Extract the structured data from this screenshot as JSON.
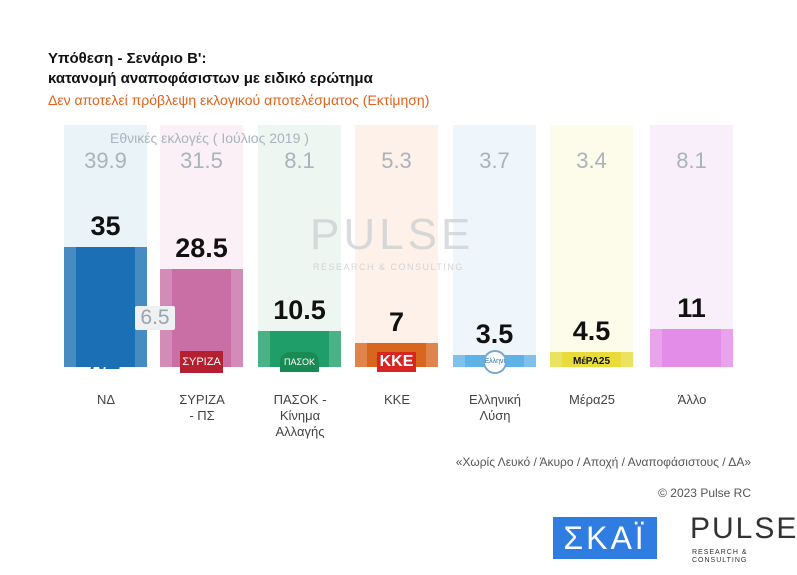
{
  "header": {
    "title_line1": "Υπόθεση - Σενάριο Β':",
    "title_line2": "κατανομή αναποφάσιστων με ειδικό ερώτημα",
    "subtitle": "Δεν αποτελεί πρόβλεψη εκλογικού αποτελέσματος   (Εκτίμηση)"
  },
  "chart_data": {
    "type": "bar",
    "categories": [
      "ΝΔ",
      "ΣΥΡΙΖΑ - ΠΣ",
      "ΠΑΣΟΚ - Κίνημα Αλλαγής",
      "ΚΚΕ",
      "Ελληνική Λύση",
      "Μέρα25",
      "Άλλο"
    ],
    "values": [
      35,
      28.5,
      10.5,
      7,
      3.5,
      4.5,
      11
    ],
    "value_labels": [
      "35",
      "28.5",
      "10.5",
      "7",
      "3.5",
      "4.5",
      "11"
    ],
    "previous_label": "Εθνικές εκλογές  ( Ιούλιος 2019 )",
    "previous_values": [
      "39.9",
      "31.5",
      "8.1",
      "5.3",
      "3.7",
      "3.4",
      "8.1"
    ],
    "gap_label": "6.5",
    "colors": [
      "#1a6fb5",
      "#c96fa6",
      "#1f9e6a",
      "#d9661e",
      "#5fb2e6",
      "#e8db3a",
      "#e48de8"
    ],
    "background_colors": [
      "#eaf3f8",
      "#fbf0f6",
      "#edf6f1",
      "#fdf1ea",
      "#eef6fb",
      "#fdfbea",
      "#f8effa"
    ],
    "logos": [
      "ΝΔ",
      "ΣΥΡΙΖΑ",
      "ΠΑΣΟΚ",
      "ΚΚΕ",
      "Ελληνική Λύση",
      "ΜέΡΑ25",
      ""
    ],
    "ylim": [
      0,
      70
    ],
    "grid": false
  },
  "footer": {
    "note": "«Χωρίς Λευκό / Άκυρο / Αποχή / Αναποφάσιστους / ΔΑ»",
    "copyright": "© 2023 Pulse RC",
    "skai_logo": "ΣΚΑΪ",
    "pulse_logo": "PULSE",
    "pulse_tagline": "RESEARCH & CONSULTING"
  }
}
